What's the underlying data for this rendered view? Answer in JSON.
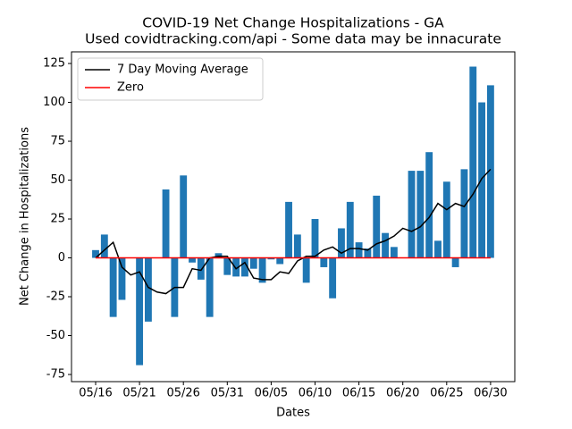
{
  "chart_data": {
    "type": "bar",
    "title": "COVID-19 Net Change Hospitalizations - GA",
    "subtitle": "Used covidtracking.com/api - Some data may be innacurate",
    "x_label": "Dates",
    "y_label": "Net Change in Hospitalizations",
    "categories": [
      "05/16",
      null,
      null,
      null,
      null,
      "05/21",
      null,
      null,
      null,
      null,
      "05/26",
      null,
      null,
      null,
      null,
      "05/31",
      null,
      null,
      null,
      null,
      "06/05",
      null,
      null,
      null,
      null,
      "06/10",
      null,
      null,
      null,
      null,
      "06/15",
      null,
      null,
      null,
      null,
      "06/20",
      null,
      null,
      null,
      null,
      "06/25",
      null,
      null,
      null,
      null,
      "06/30"
    ],
    "values": [
      5,
      15,
      -38,
      -27,
      0,
      -69,
      -41,
      0,
      44,
      -38,
      53,
      -3,
      -14,
      -38,
      3,
      -11,
      -12,
      -12,
      -7,
      -16,
      -1,
      -4,
      36,
      15,
      -16,
      25,
      -6,
      -26,
      19,
      36,
      10,
      6,
      40,
      16,
      7,
      0,
      56,
      56,
      68,
      11,
      49,
      -6,
      57,
      123,
      100,
      111
    ],
    "color": "#1f77b4",
    "series": [
      {
        "name": "7 Day Moving Average",
        "color": "#000000",
        "values": [
          0,
          5,
          10,
          -6,
          -11,
          -9,
          -19,
          -22,
          -23,
          -19,
          -19,
          -7,
          -8,
          0,
          1,
          1,
          -7,
          -3,
          -13,
          -14,
          -14,
          -9,
          -10,
          -2,
          1,
          1,
          5,
          7,
          3,
          6,
          6,
          5,
          9,
          11,
          14,
          19,
          17,
          20,
          26,
          35,
          31,
          35,
          33,
          41,
          51,
          57
        ]
      },
      {
        "name": "Zero",
        "color": "#ff0000",
        "values": [
          0,
          0,
          0,
          0,
          0,
          0,
          0,
          0,
          0,
          0,
          0,
          0,
          0,
          0,
          0,
          0,
          0,
          0,
          0,
          0,
          0,
          0,
          0,
          0,
          0,
          0,
          0,
          0,
          0,
          0,
          0,
          0,
          0,
          0,
          0,
          0,
          0,
          0,
          0,
          0,
          0,
          0,
          0,
          0,
          0,
          0
        ]
      }
    ],
    "ylim": [
      -79.6,
      132.5
    ],
    "yticks": [
      -75,
      -50,
      -25,
      0,
      25,
      50,
      75,
      100,
      125
    ],
    "legend": "upper left"
  }
}
